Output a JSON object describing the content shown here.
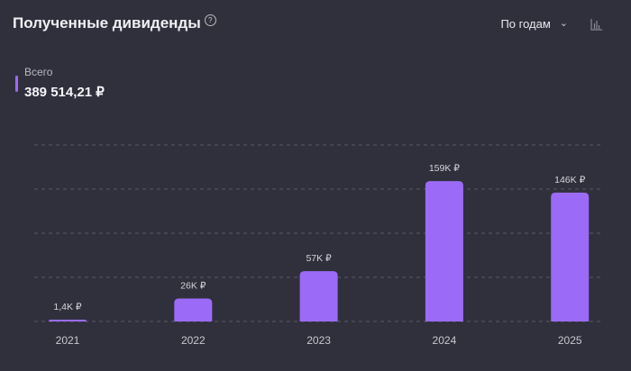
{
  "header": {
    "title": "Полученные дивиденды",
    "help_icon": "question-circle-icon",
    "period_select": "По годам",
    "chart_type_icon": "bar-chart-icon"
  },
  "total": {
    "label": "Всего",
    "value": "389 514,21 ₽"
  },
  "colors": {
    "background": "#30303c",
    "bar": "#9b6bf7",
    "accent": "#9b6bf7"
  },
  "chart_data": {
    "type": "bar",
    "categories": [
      "2021",
      "2022",
      "2023",
      "2024",
      "2025"
    ],
    "values": [
      1400,
      26000,
      57000,
      159000,
      146000
    ],
    "data_labels": [
      "1,4K ₽",
      "26K ₽",
      "57K ₽",
      "159K ₽",
      "146K ₽"
    ],
    "ylim": [
      0,
      200000
    ],
    "grid": true,
    "gridlines": [
      0,
      50000,
      100000,
      150000,
      200000
    ]
  }
}
